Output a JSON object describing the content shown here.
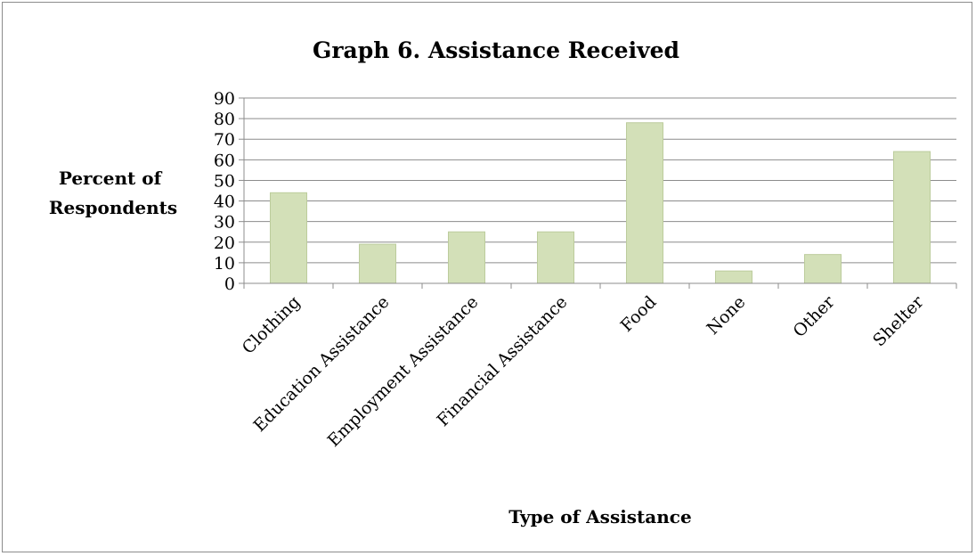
{
  "chart_data": {
    "type": "bar",
    "title": "Graph 6.  Assistance Received",
    "xlabel": "Type of Assistance",
    "ylabel_lines": [
      "Percent of",
      "Respondents"
    ],
    "categories": [
      "Clothing",
      "Education Assistance",
      "Employment Assistance",
      "Financial Assistance",
      "Food",
      "None",
      "Other",
      "Shelter"
    ],
    "values": [
      44,
      19,
      25,
      25,
      78,
      6,
      14,
      64
    ],
    "ylim": [
      0,
      90
    ],
    "yticks": [
      0,
      10,
      20,
      30,
      40,
      50,
      60,
      70,
      80,
      90
    ],
    "grid": true,
    "legend": "none",
    "bar_color": "#d3e0b8",
    "bar_stroke": "#bccc9c"
  }
}
